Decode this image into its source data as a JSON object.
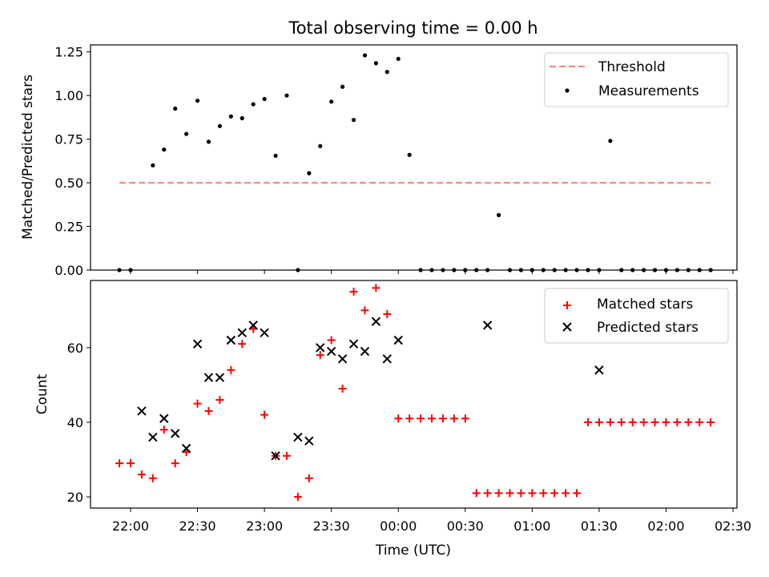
{
  "title": "Total observing time = 0.00 h",
  "xlabel": "Time (UTC)",
  "xticks": [
    "22:00",
    "22:30",
    "23:00",
    "23:30",
    "00:00",
    "00:30",
    "01:00",
    "01:30",
    "02:00",
    "02:30"
  ],
  "chart_data": [
    {
      "type": "scatter",
      "ylabel": "Matched/Predicted stars",
      "ylim": [
        0,
        1.29
      ],
      "yticks": [
        "0.00",
        "0.25",
        "0.50",
        "0.75",
        "1.00",
        "1.25"
      ],
      "ytick_values": [
        0,
        0.25,
        0.5,
        0.75,
        1.0,
        1.25
      ],
      "legend_position": "top-right",
      "threshold": {
        "name": "Threshold",
        "value": 0.5,
        "x_range": [
          -5,
          260
        ],
        "color": "#ff7f7f"
      },
      "series": [
        {
          "name": "Measurements",
          "color": "#000000",
          "x": [
            -5,
            0,
            10,
            15,
            20,
            25,
            30,
            35,
            40,
            45,
            50,
            55,
            60,
            65,
            70,
            75,
            80,
            85,
            90,
            95,
            100,
            105,
            110,
            115,
            120,
            125,
            130,
            135,
            140,
            145,
            150,
            155,
            160,
            165,
            170,
            175,
            180,
            185,
            190,
            195,
            200,
            205,
            210,
            215,
            220,
            225,
            230,
            235,
            240,
            245,
            250,
            255,
            260
          ],
          "y": [
            0,
            0,
            0.6,
            0.69,
            0.925,
            0.78,
            0.97,
            0.735,
            0.825,
            0.88,
            0.87,
            0.95,
            0.98,
            0.655,
            1.0,
            0,
            0.555,
            0.71,
            0.965,
            1.05,
            0.86,
            1.23,
            1.185,
            1.135,
            1.21,
            0.66,
            0,
            0,
            0,
            0,
            0,
            0,
            0,
            0.315,
            0,
            0,
            0,
            0,
            0,
            0,
            0,
            0,
            0,
            0.74,
            0,
            0,
            0,
            0,
            0,
            0,
            0,
            0,
            0
          ]
        }
      ]
    },
    {
      "type": "scatter",
      "ylabel": "Count",
      "ylim": [
        17,
        78
      ],
      "yticks": [
        "20",
        "40",
        "60"
      ],
      "ytick_values": [
        20,
        40,
        60
      ],
      "legend_position": "top-right",
      "series": [
        {
          "name": "Matched stars",
          "color": "#ff0000",
          "marker": "plus",
          "x": [
            -5,
            0,
            5,
            10,
            15,
            20,
            25,
            30,
            35,
            40,
            45,
            50,
            55,
            60,
            65,
            70,
            75,
            80,
            85,
            90,
            95,
            100,
            105,
            110,
            115,
            120,
            125,
            130,
            135,
            140,
            145,
            150,
            155,
            160,
            165,
            170,
            175,
            180,
            185,
            190,
            195,
            200,
            205,
            210,
            215,
            220,
            225,
            230,
            235,
            240,
            245,
            250,
            255,
            260
          ],
          "y": [
            29,
            29,
            26,
            25,
            38,
            29,
            32,
            45,
            43,
            46,
            54,
            61,
            65,
            42,
            31,
            31,
            20,
            25,
            58,
            62,
            49,
            75,
            70,
            76,
            69,
            41,
            41,
            41,
            41,
            41,
            41,
            41,
            21,
            21,
            21,
            21,
            21,
            21,
            21,
            21,
            21,
            21,
            40,
            40,
            40,
            40,
            40,
            40,
            40,
            40,
            40,
            40,
            40,
            40
          ]
        },
        {
          "name": "Predicted stars",
          "color": "#000000",
          "marker": "x",
          "x": [
            5,
            10,
            15,
            20,
            25,
            30,
            35,
            40,
            45,
            50,
            55,
            60,
            65,
            75,
            80,
            85,
            90,
            95,
            100,
            105,
            110,
            115,
            120,
            160,
            210
          ],
          "y": [
            43,
            36,
            41,
            37,
            33,
            61,
            52,
            52,
            62,
            64,
            66,
            64,
            31,
            36,
            35,
            60,
            59,
            57,
            61,
            59,
            67,
            57,
            62,
            66,
            54
          ]
        }
      ]
    }
  ]
}
